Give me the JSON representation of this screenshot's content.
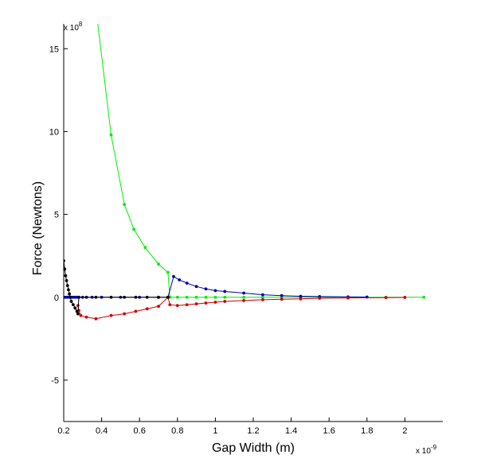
{
  "chart_data": {
    "type": "line",
    "title": "",
    "xlabel": "Gap Width (m)",
    "ylabel": "Force (Newtons)",
    "x_multiplier_text": "x 10",
    "x_multiplier_exp": "-9",
    "y_multiplier_text": "x 10",
    "y_multiplier_exp": "8",
    "xlim": [
      0.2,
      2.2
    ],
    "ylim": [
      -7.5,
      16.5
    ],
    "xticks": [
      0.2,
      0.4,
      0.6,
      0.8,
      1,
      1.2,
      1.4,
      1.6,
      1.8,
      2
    ],
    "xtick_labels": [
      "0.2",
      "0.4",
      "0.6",
      "0.8",
      "1",
      "1.2",
      "1.4",
      "1.6",
      "1.8",
      "2"
    ],
    "yticks": [
      -5,
      0,
      5,
      10,
      15
    ],
    "ytick_labels": [
      "-5",
      "0",
      "5",
      "10",
      "15"
    ],
    "grid": false,
    "series": [
      {
        "name": "green",
        "color": "#00ee00",
        "points": [
          [
            0.38,
            16.5
          ],
          [
            0.45,
            9.8
          ],
          [
            0.52,
            5.6
          ],
          [
            0.57,
            4.1
          ],
          [
            0.63,
            3.0
          ],
          [
            0.7,
            2.0
          ],
          [
            0.75,
            1.5
          ],
          [
            0.76,
            0.0
          ],
          [
            0.8,
            0.0
          ],
          [
            0.85,
            0.0
          ],
          [
            0.9,
            0.0
          ],
          [
            0.95,
            0.0
          ],
          [
            1.0,
            0.0
          ],
          [
            1.05,
            0.0
          ],
          [
            1.15,
            0.0
          ],
          [
            1.25,
            0.0
          ],
          [
            1.35,
            0.0
          ],
          [
            1.45,
            0.0
          ],
          [
            1.55,
            0.0
          ],
          [
            1.7,
            0.0
          ],
          [
            1.9,
            0.0
          ],
          [
            2.1,
            0.0
          ]
        ],
        "marker_start": 1
      },
      {
        "name": "blue",
        "color": "#0000aa",
        "points": [
          [
            0.2,
            0.0
          ],
          [
            0.21,
            0.0
          ],
          [
            0.22,
            0.0
          ],
          [
            0.23,
            0.0
          ],
          [
            0.24,
            0.0
          ],
          [
            0.25,
            0.0
          ],
          [
            0.26,
            0.0
          ],
          [
            0.27,
            0.0
          ],
          [
            0.28,
            0.0
          ],
          [
            0.3,
            0.0
          ],
          [
            0.35,
            0.0
          ],
          [
            0.4,
            0.0
          ],
          [
            0.5,
            0.0
          ],
          [
            0.6,
            0.0
          ],
          [
            0.7,
            0.0
          ],
          [
            0.75,
            0.0
          ],
          [
            0.78,
            1.25
          ],
          [
            0.81,
            1.05
          ],
          [
            0.85,
            0.85
          ],
          [
            0.9,
            0.65
          ],
          [
            0.95,
            0.5
          ],
          [
            1.0,
            0.4
          ],
          [
            1.05,
            0.35
          ],
          [
            1.15,
            0.25
          ],
          [
            1.25,
            0.15
          ],
          [
            1.35,
            0.1
          ],
          [
            1.45,
            0.06
          ],
          [
            1.55,
            0.04
          ],
          [
            1.7,
            0.02
          ],
          [
            1.8,
            0.01
          ]
        ],
        "marker_start": 0
      },
      {
        "name": "red",
        "color": "#cc0000",
        "points": [
          [
            0.275,
            -0.5
          ],
          [
            0.28,
            -0.8
          ],
          [
            0.29,
            -1.1
          ],
          [
            0.32,
            -1.2
          ],
          [
            0.37,
            -1.3
          ],
          [
            0.45,
            -1.1
          ],
          [
            0.52,
            -1.0
          ],
          [
            0.58,
            -0.85
          ],
          [
            0.64,
            -0.7
          ],
          [
            0.7,
            -0.55
          ],
          [
            0.75,
            0.0
          ],
          [
            0.76,
            -0.45
          ],
          [
            0.8,
            -0.5
          ],
          [
            0.85,
            -0.45
          ],
          [
            0.9,
            -0.4
          ],
          [
            0.95,
            -0.35
          ],
          [
            1.0,
            -0.3
          ],
          [
            1.05,
            -0.25
          ],
          [
            1.15,
            -0.2
          ],
          [
            1.25,
            -0.15
          ],
          [
            1.35,
            -0.12
          ],
          [
            1.45,
            -0.1
          ],
          [
            1.55,
            -0.06
          ],
          [
            1.7,
            -0.04
          ],
          [
            1.9,
            -0.02
          ],
          [
            2.0,
            -0.01
          ]
        ],
        "marker_start": 0
      },
      {
        "name": "black",
        "color": "#000000",
        "points": [
          [
            0.2,
            2.2
          ],
          [
            0.205,
            1.7
          ],
          [
            0.21,
            1.3
          ],
          [
            0.215,
            1.0
          ],
          [
            0.22,
            0.7
          ],
          [
            0.225,
            0.45
          ],
          [
            0.23,
            0.2
          ],
          [
            0.235,
            0.0
          ],
          [
            0.24,
            -0.25
          ],
          [
            0.25,
            -0.45
          ],
          [
            0.26,
            -0.65
          ],
          [
            0.27,
            -0.85
          ],
          [
            0.275,
            -1.0
          ],
          [
            0.28,
            0.0
          ],
          [
            0.32,
            0.0
          ],
          [
            0.37,
            0.0
          ],
          [
            0.45,
            0.0
          ],
          [
            0.52,
            0.0
          ],
          [
            0.58,
            0.0
          ],
          [
            0.64,
            0.0
          ],
          [
            0.7,
            0.0
          ],
          [
            0.75,
            0.0
          ]
        ],
        "marker_start": 0
      }
    ]
  }
}
